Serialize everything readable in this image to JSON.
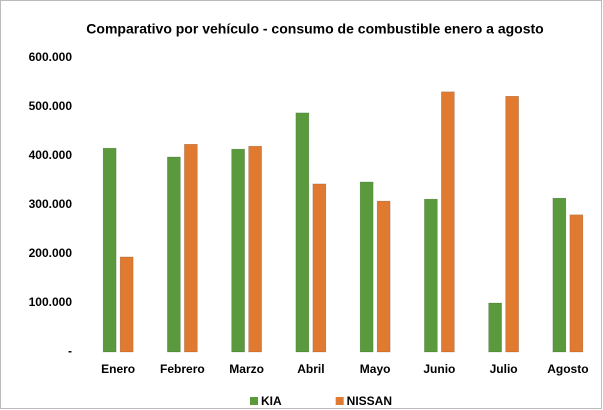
{
  "chart_data": {
    "type": "bar",
    "title": "Comparativo por vehículo - consumo de combustible enero a agosto",
    "categories": [
      "Enero",
      "Febrero",
      "Marzo",
      "Abril",
      "Mayo",
      "Junio",
      "Julio",
      "Agosto"
    ],
    "series": [
      {
        "name": "KIA",
        "color": "#5a9a3c",
        "values": [
          416000,
          398000,
          414000,
          488000,
          347000,
          312000,
          100000,
          314000
        ]
      },
      {
        "name": "NISSAN",
        "color": "#e07a30",
        "values": [
          194000,
          424000,
          420000,
          343000,
          308000,
          531000,
          522000,
          280000
        ]
      }
    ],
    "ylim": [
      0,
      600000
    ],
    "yticks": [
      {
        "value": 0,
        "label": "-"
      },
      {
        "value": 100000,
        "label": "100.000"
      },
      {
        "value": 200000,
        "label": "200.000"
      },
      {
        "value": 300000,
        "label": "300.000"
      },
      {
        "value": 400000,
        "label": "400.000"
      },
      {
        "value": 500000,
        "label": "500.000"
      },
      {
        "value": 600000,
        "label": "600.000"
      }
    ],
    "grid": false,
    "legend": "bottom"
  }
}
